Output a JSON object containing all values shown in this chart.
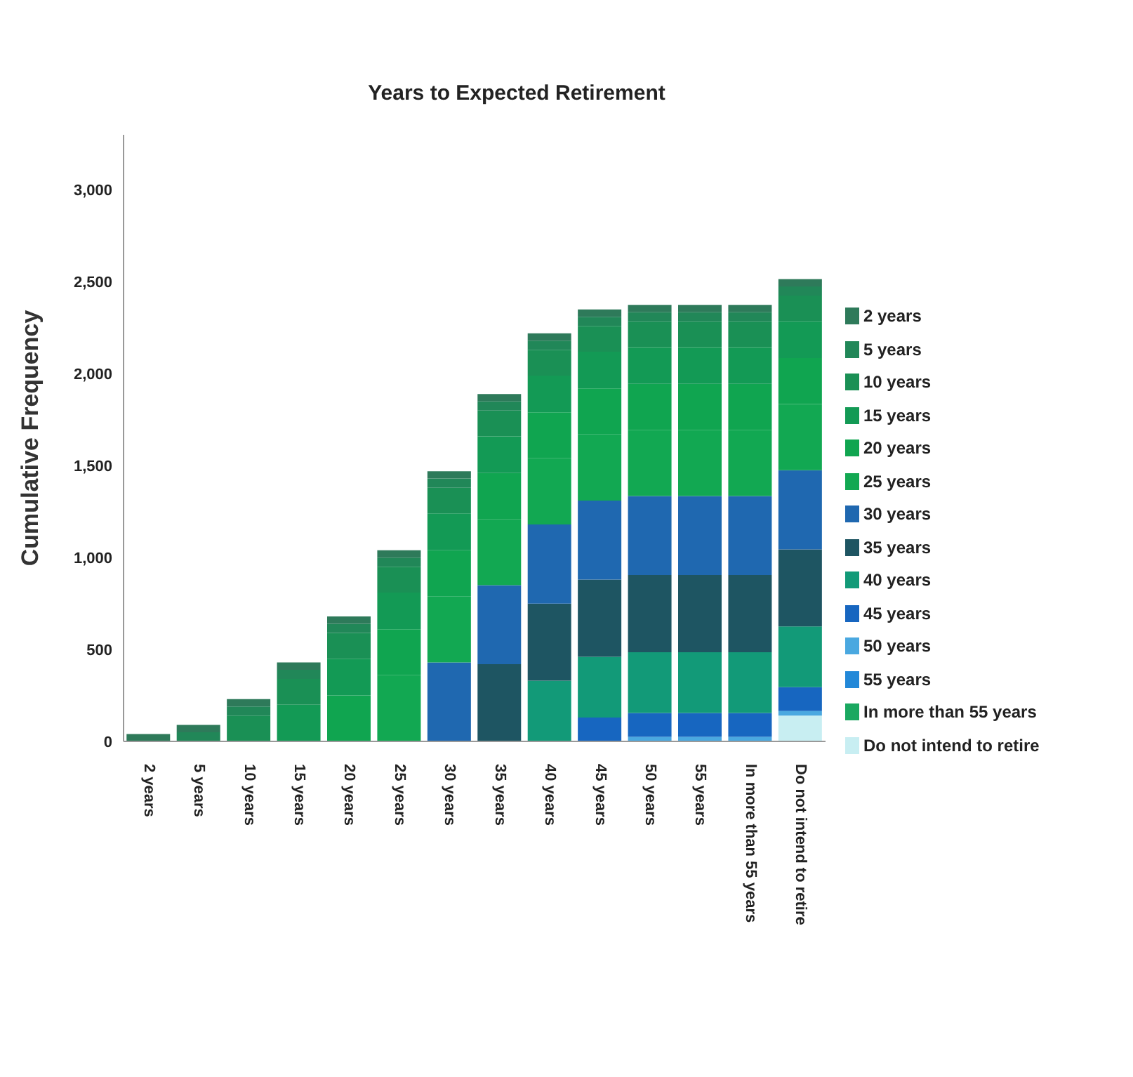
{
  "chart_data": {
    "type": "bar",
    "stacked": true,
    "title": "Years to Expected Retirement",
    "ylabel": "Cumulative Frequency",
    "categories": [
      "2 years",
      "5 years",
      "10 years",
      "15 years",
      "20 years",
      "25 years",
      "30 years",
      "35 years",
      "40 years",
      "45 years",
      "50 years",
      "55 years",
      "In more than 55 years",
      "Do not intend to retire"
    ],
    "series": [
      {
        "name": "Do not intend to retire",
        "color": "#c8eef2",
        "values": [
          null,
          null,
          null,
          null,
          null,
          null,
          null,
          null,
          null,
          null,
          null,
          null,
          null,
          140
        ]
      },
      {
        "name": "In more than 55 years",
        "color": "#1aa860",
        "values": [
          null,
          null,
          null,
          null,
          null,
          null,
          null,
          null,
          null,
          null,
          null,
          null,
          null,
          null
        ]
      },
      {
        "name": "55 years",
        "color": "#2288d8",
        "values": [
          null,
          null,
          null,
          null,
          null,
          null,
          null,
          null,
          null,
          null,
          null,
          null,
          null,
          null
        ]
      },
      {
        "name": "50 years",
        "color": "#4aa8e0",
        "values": [
          null,
          null,
          null,
          null,
          null,
          null,
          null,
          null,
          null,
          null,
          25,
          25,
          25,
          25
        ]
      },
      {
        "name": "45 years",
        "color": "#1766c0",
        "values": [
          null,
          null,
          null,
          null,
          null,
          null,
          null,
          null,
          null,
          130,
          130,
          130,
          130,
          130
        ]
      },
      {
        "name": "40 years",
        "color": "#129a78",
        "values": [
          null,
          null,
          null,
          null,
          null,
          null,
          null,
          null,
          330,
          330,
          330,
          330,
          330,
          330
        ]
      },
      {
        "name": "35 years",
        "color": "#1e5562",
        "values": [
          null,
          null,
          null,
          null,
          null,
          null,
          null,
          420,
          420,
          420,
          420,
          420,
          420,
          420
        ]
      },
      {
        "name": "30 years",
        "color": "#1f68b0",
        "values": [
          null,
          null,
          null,
          null,
          null,
          null,
          430,
          430,
          430,
          430,
          430,
          430,
          430,
          430
        ]
      },
      {
        "name": "25 years",
        "color": "#12a852",
        "values": [
          null,
          null,
          null,
          null,
          null,
          360,
          360,
          360,
          360,
          360,
          360,
          360,
          360,
          360
        ]
      },
      {
        "name": "20 years",
        "color": "#10a550",
        "values": [
          null,
          null,
          null,
          null,
          250,
          250,
          250,
          250,
          250,
          250,
          250,
          250,
          250,
          250
        ]
      },
      {
        "name": "15 years",
        "color": "#139a55",
        "values": [
          null,
          null,
          null,
          200,
          200,
          200,
          200,
          200,
          200,
          200,
          200,
          200,
          200,
          200
        ]
      },
      {
        "name": "10 years",
        "color": "#1a9055",
        "values": [
          null,
          null,
          140,
          140,
          140,
          140,
          140,
          140,
          140,
          140,
          140,
          140,
          140,
          140
        ]
      },
      {
        "name": "5 years",
        "color": "#218758",
        "values": [
          null,
          50,
          50,
          50,
          50,
          50,
          50,
          50,
          50,
          50,
          50,
          50,
          50,
          50
        ]
      },
      {
        "name": "2 years",
        "color": "#2e7a5a",
        "values": [
          40,
          40,
          40,
          40,
          40,
          40,
          40,
          40,
          40,
          40,
          40,
          40,
          40,
          40
        ]
      }
    ],
    "ylim": [
      0,
      3300
    ],
    "yticks": [
      {
        "value": 0,
        "label": "0"
      },
      {
        "value": 500,
        "label": "500"
      },
      {
        "value": 1000,
        "label": "1,000"
      },
      {
        "value": 1500,
        "label": "1,500"
      },
      {
        "value": 2000,
        "label": "2,000"
      },
      {
        "value": 2500,
        "label": "2,500"
      },
      {
        "value": 3000,
        "label": "3,000"
      }
    ],
    "grid": false,
    "legend": "right"
  }
}
